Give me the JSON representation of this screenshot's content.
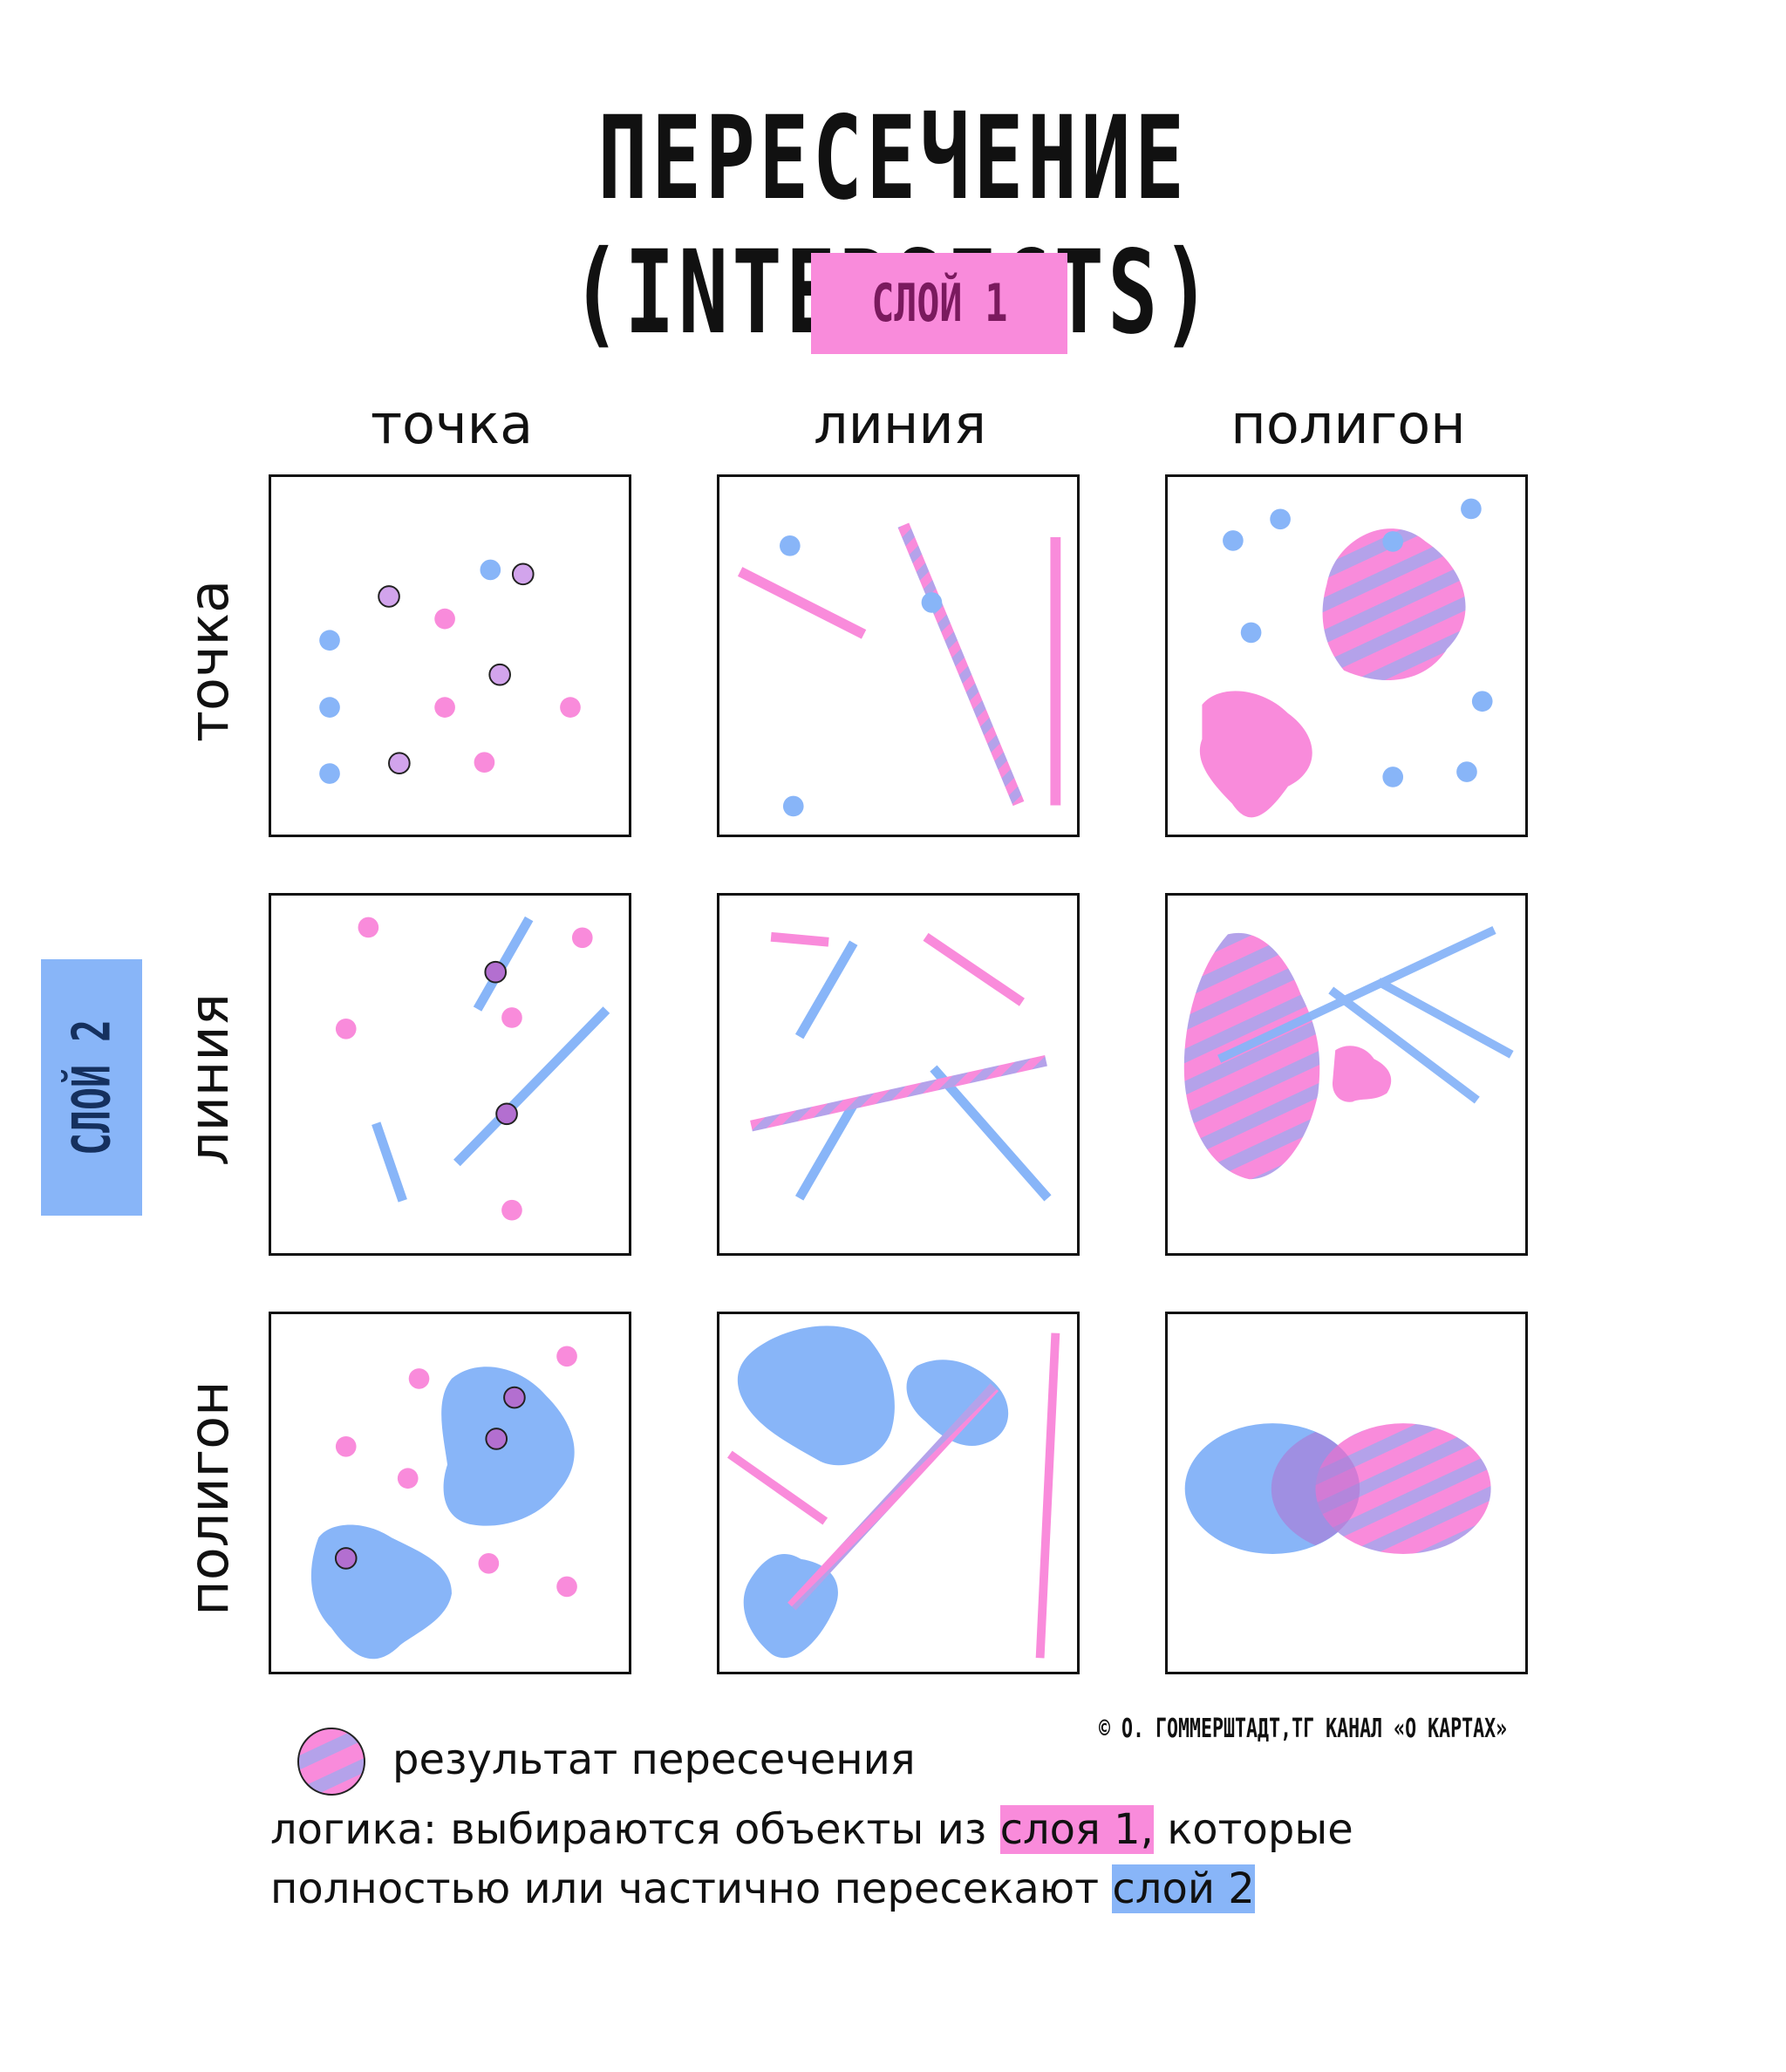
{
  "title": "ПЕРЕСЕЧЕНИЕ (INTERSECTS)",
  "layer1_label": "СЛОЙ 1",
  "layer2_label": "СЛОЙ 2",
  "columns": [
    "точка",
    "линия",
    "полигон"
  ],
  "rows": [
    "точка",
    "линия",
    "полигон"
  ],
  "legend": "результат пересечения",
  "credit": "© О. ГОММЕРШТАДТ,ТГ КАНАЛ «О КАРТАХ»",
  "logic": {
    "prefix": "логика: выбираются объекты из ",
    "layer1": "слоя 1,",
    "middle": " которые",
    "line2": "полностью или частично пересекают ",
    "layer2": "слой 2"
  },
  "colors": {
    "layer1_pink": "#f98bdb",
    "layer2_blue": "#88b5f8",
    "result_purple": "#c89be0"
  }
}
